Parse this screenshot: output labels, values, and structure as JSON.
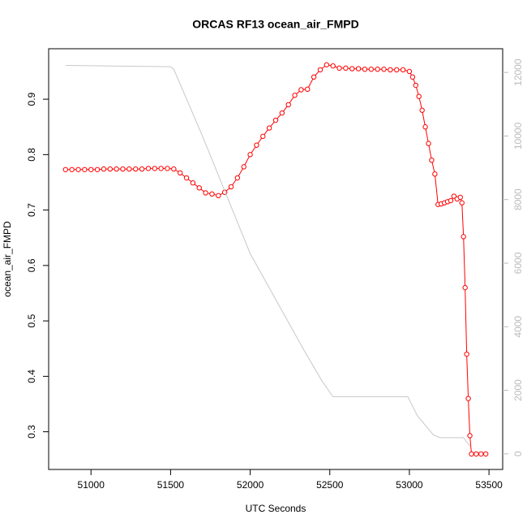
{
  "chart_data": {
    "type": "line",
    "title": "ORCAS RF13 ocean_air_FMPD",
    "xlabel": "UTC Seconds",
    "ylabel": "ocean_air_FMPD",
    "xlim": [
      50734,
      53586
    ],
    "xticks": [
      51000,
      51500,
      52000,
      52500,
      53000,
      53500
    ],
    "ylim": [
      0.232,
      0.991
    ],
    "yticks": [
      0.3,
      0.4,
      0.5,
      0.6,
      0.7,
      0.8,
      0.9
    ],
    "y2lim": [
      -490,
      12745
    ],
    "y2ticks": [
      0,
      2000,
      4000,
      6000,
      8000,
      10000,
      12000
    ],
    "series": [
      {
        "color": "#ff0000",
        "x": [
          50840,
          50880,
          50920,
          50960,
          51000,
          51040,
          51080,
          51120,
          51160,
          51200,
          51240,
          51280,
          51320,
          51360,
          51400,
          51440,
          51480,
          51520,
          51560,
          51600,
          51640,
          51680,
          51720,
          51760,
          51800,
          51840,
          51880,
          51920,
          51960,
          52000,
          52040,
          52080,
          52120,
          52160,
          52200,
          52240,
          52280,
          52320,
          52360,
          52400,
          52440,
          52480,
          52520,
          52560,
          52600,
          52640,
          52680,
          52720,
          52760,
          52800,
          52840,
          52880,
          52920,
          52960,
          53000,
          53020,
          53040,
          53060,
          53080,
          53100,
          53120,
          53140,
          53160,
          53180,
          53200,
          53220,
          53240,
          53260,
          53280,
          53300,
          53320,
          53330,
          53340,
          53350,
          53360,
          53370,
          53380,
          53390,
          53420,
          53450,
          53480
        ],
        "values": [
          0.773,
          0.773,
          0.773,
          0.773,
          0.773,
          0.773,
          0.774,
          0.774,
          0.774,
          0.774,
          0.774,
          0.774,
          0.774,
          0.775,
          0.775,
          0.775,
          0.775,
          0.774,
          0.767,
          0.758,
          0.749,
          0.74,
          0.731,
          0.729,
          0.726,
          0.732,
          0.742,
          0.758,
          0.778,
          0.8,
          0.817,
          0.833,
          0.848,
          0.862,
          0.875,
          0.89,
          0.907,
          0.917,
          0.918,
          0.94,
          0.953,
          0.962,
          0.96,
          0.956,
          0.956,
          0.955,
          0.955,
          0.954,
          0.954,
          0.954,
          0.954,
          0.953,
          0.953,
          0.953,
          0.95,
          0.94,
          0.925,
          0.905,
          0.88,
          0.85,
          0.82,
          0.79,
          0.765,
          0.71,
          0.711,
          0.713,
          0.715,
          0.717,
          0.725,
          0.72,
          0.723,
          0.713,
          0.652,
          0.56,
          0.44,
          0.36,
          0.293,
          0.26,
          0.26,
          0.26,
          0.26
        ]
      },
      {
        "color": "#c8c8c8",
        "axis": "y2",
        "x": [
          50840,
          51500,
          51520,
          51700,
          52000,
          52337,
          52450,
          52520,
          52990,
          53050,
          53150,
          53194,
          53340,
          53380
        ],
        "values": [
          12220,
          12180,
          12100,
          10000,
          6300,
          3270,
          2300,
          1800,
          1800,
          1200,
          600,
          510,
          510,
          250
        ]
      }
    ]
  }
}
